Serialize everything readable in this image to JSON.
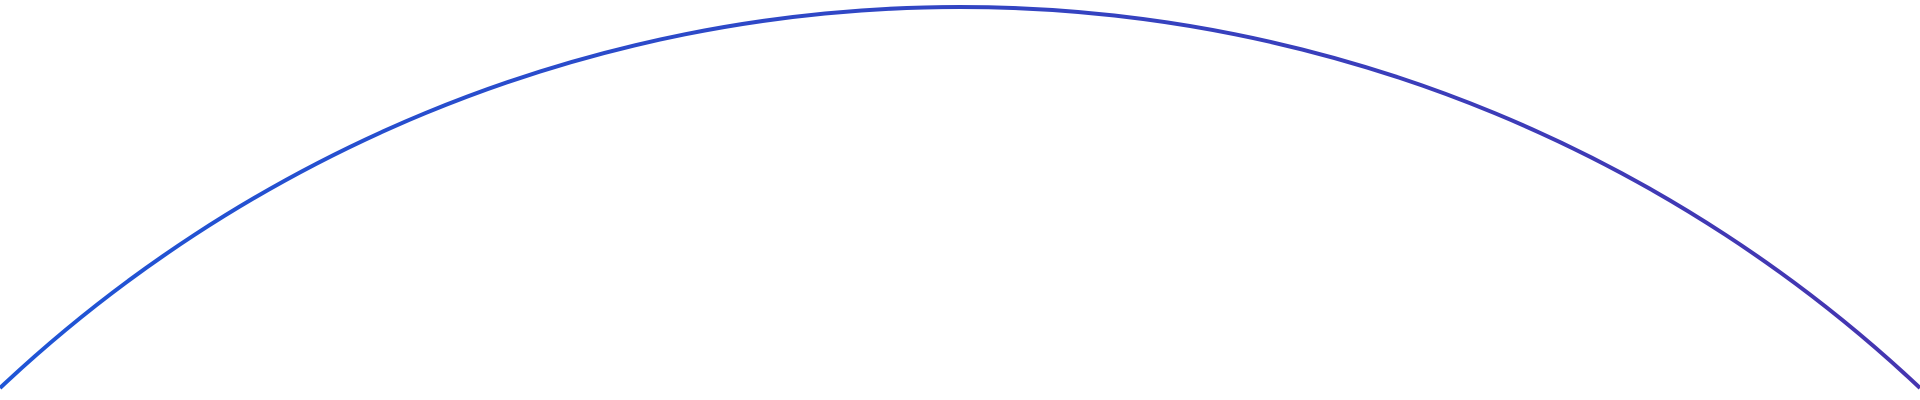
{
  "arc": {
    "color_start": "#1f55d6",
    "color_end": "#4535b0"
  }
}
